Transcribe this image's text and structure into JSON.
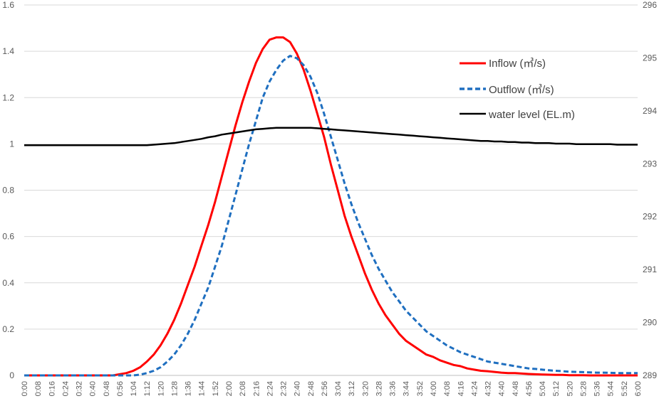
{
  "chart_data": {
    "type": "line",
    "title": "",
    "xlabel": "",
    "ylabel_left": "",
    "ylabel_right": "",
    "x": [
      "0:00",
      "0:04",
      "0:08",
      "0:12",
      "0:16",
      "0:20",
      "0:24",
      "0:28",
      "0:32",
      "0:36",
      "0:40",
      "0:44",
      "0:48",
      "0:52",
      "0:56",
      "1:00",
      "1:04",
      "1:08",
      "1:12",
      "1:16",
      "1:20",
      "1:24",
      "1:28",
      "1:32",
      "1:36",
      "1:40",
      "1:44",
      "1:48",
      "1:52",
      "1:56",
      "2:00",
      "2:04",
      "2:08",
      "2:12",
      "2:16",
      "2:20",
      "2:24",
      "2:28",
      "2:32",
      "2:36",
      "2:40",
      "2:44",
      "2:48",
      "2:52",
      "2:56",
      "3:00",
      "3:04",
      "3:08",
      "3:12",
      "3:16",
      "3:20",
      "3:24",
      "3:28",
      "3:32",
      "3:36",
      "3:40",
      "3:44",
      "3:48",
      "3:52",
      "3:56",
      "4:00",
      "4:04",
      "4:08",
      "4:12",
      "4:16",
      "4:20",
      "4:24",
      "4:28",
      "4:32",
      "4:36",
      "4:40",
      "4:44",
      "4:48",
      "4:52",
      "4:56",
      "5:00",
      "5:04",
      "5:08",
      "5:12",
      "5:16",
      "5:20",
      "5:24",
      "5:28",
      "5:32",
      "5:36",
      "5:40",
      "5:44",
      "5:48",
      "5:52",
      "5:56",
      "6:00"
    ],
    "x_tick_labels": [
      "0:00",
      "0:08",
      "0:16",
      "0:24",
      "0:32",
      "0:40",
      "0:48",
      "0:56",
      "1:04",
      "1:12",
      "1:20",
      "1:28",
      "1:36",
      "1:44",
      "1:52",
      "2:00",
      "2:08",
      "2:16",
      "2:24",
      "2:32",
      "2:40",
      "2:48",
      "2:56",
      "3:04",
      "3:12",
      "3:20",
      "3:28",
      "3:36",
      "3:44",
      "3:52",
      "4:00",
      "4:08",
      "4:16",
      "4:24",
      "4:32",
      "4:40",
      "4:48",
      "4:56",
      "5:04",
      "5:12",
      "5:20",
      "5:28",
      "5:36",
      "5:44",
      "5:52",
      "6:00"
    ],
    "ylim_left": [
      0,
      1.6
    ],
    "yticks_left": [
      "0",
      "0.2",
      "0.4",
      "0.6",
      "0.8",
      "1",
      "1.2",
      "1.4",
      "1.6"
    ],
    "ylim_right": [
      289,
      296
    ],
    "yticks_right": [
      "289",
      "290",
      "291",
      "292",
      "293",
      "294",
      "295",
      "296"
    ],
    "grid": "horizontal",
    "legend_position": "top-right",
    "series": [
      {
        "name": "Inflow (㎥/s)",
        "axis": "left",
        "color": "#ff0000",
        "dash": "solid",
        "values": [
          0,
          0,
          0,
          0,
          0,
          0,
          0,
          0,
          0,
          0,
          0,
          0,
          0,
          0,
          0.005,
          0.01,
          0.02,
          0.035,
          0.06,
          0.09,
          0.13,
          0.18,
          0.24,
          0.31,
          0.39,
          0.47,
          0.56,
          0.65,
          0.75,
          0.86,
          0.97,
          1.08,
          1.18,
          1.27,
          1.35,
          1.41,
          1.45,
          1.46,
          1.46,
          1.44,
          1.39,
          1.32,
          1.23,
          1.13,
          1.03,
          0.91,
          0.8,
          0.69,
          0.6,
          0.52,
          0.44,
          0.37,
          0.31,
          0.26,
          0.22,
          0.18,
          0.15,
          0.13,
          0.11,
          0.09,
          0.08,
          0.065,
          0.055,
          0.045,
          0.04,
          0.03,
          0.025,
          0.02,
          0.018,
          0.015,
          0.012,
          0.01,
          0.01,
          0.008,
          0.006,
          0.005,
          0.004,
          0.003,
          0.002,
          0.002,
          0.001,
          0.001,
          0.001,
          0,
          0,
          0,
          0,
          0,
          0,
          0,
          0
        ]
      },
      {
        "name": "Outflow (㎥/s)",
        "axis": "left",
        "color": "#1f6fc0",
        "dash": "dashed",
        "values": [
          0,
          0,
          0,
          0,
          0,
          0,
          0,
          0,
          0,
          0,
          0,
          0,
          0,
          0,
          0,
          0,
          0,
          0.003,
          0.01,
          0.02,
          0.035,
          0.06,
          0.09,
          0.13,
          0.18,
          0.24,
          0.31,
          0.38,
          0.47,
          0.56,
          0.67,
          0.78,
          0.89,
          1.0,
          1.1,
          1.2,
          1.27,
          1.32,
          1.36,
          1.38,
          1.37,
          1.34,
          1.29,
          1.22,
          1.13,
          1.03,
          0.93,
          0.83,
          0.74,
          0.66,
          0.59,
          0.52,
          0.46,
          0.41,
          0.36,
          0.32,
          0.28,
          0.25,
          0.22,
          0.19,
          0.17,
          0.15,
          0.13,
          0.115,
          0.1,
          0.09,
          0.08,
          0.07,
          0.06,
          0.055,
          0.05,
          0.045,
          0.04,
          0.035,
          0.03,
          0.028,
          0.025,
          0.022,
          0.02,
          0.018,
          0.016,
          0.015,
          0.014,
          0.013,
          0.012,
          0.012,
          0.011,
          0.01,
          0.01,
          0.01,
          0.01
        ]
      },
      {
        "name": "water level (EL.m)",
        "axis": "right",
        "color": "#000000",
        "dash": "solid",
        "values": [
          293.35,
          293.35,
          293.35,
          293.35,
          293.35,
          293.35,
          293.35,
          293.35,
          293.35,
          293.35,
          293.35,
          293.35,
          293.35,
          293.35,
          293.35,
          293.35,
          293.35,
          293.35,
          293.35,
          293.36,
          293.37,
          293.38,
          293.39,
          293.41,
          293.43,
          293.45,
          293.47,
          293.5,
          293.52,
          293.55,
          293.57,
          293.59,
          293.61,
          293.63,
          293.65,
          293.66,
          293.67,
          293.68,
          293.68,
          293.68,
          293.68,
          293.68,
          293.68,
          293.67,
          293.66,
          293.65,
          293.64,
          293.63,
          293.62,
          293.61,
          293.6,
          293.59,
          293.58,
          293.57,
          293.56,
          293.55,
          293.54,
          293.53,
          293.52,
          293.51,
          293.5,
          293.49,
          293.48,
          293.47,
          293.46,
          293.45,
          293.44,
          293.43,
          293.43,
          293.42,
          293.42,
          293.41,
          293.41,
          293.4,
          293.4,
          293.39,
          293.39,
          293.39,
          293.38,
          293.38,
          293.38,
          293.37,
          293.37,
          293.37,
          293.37,
          293.37,
          293.37,
          293.36,
          293.36,
          293.36,
          293.36
        ]
      }
    ]
  }
}
